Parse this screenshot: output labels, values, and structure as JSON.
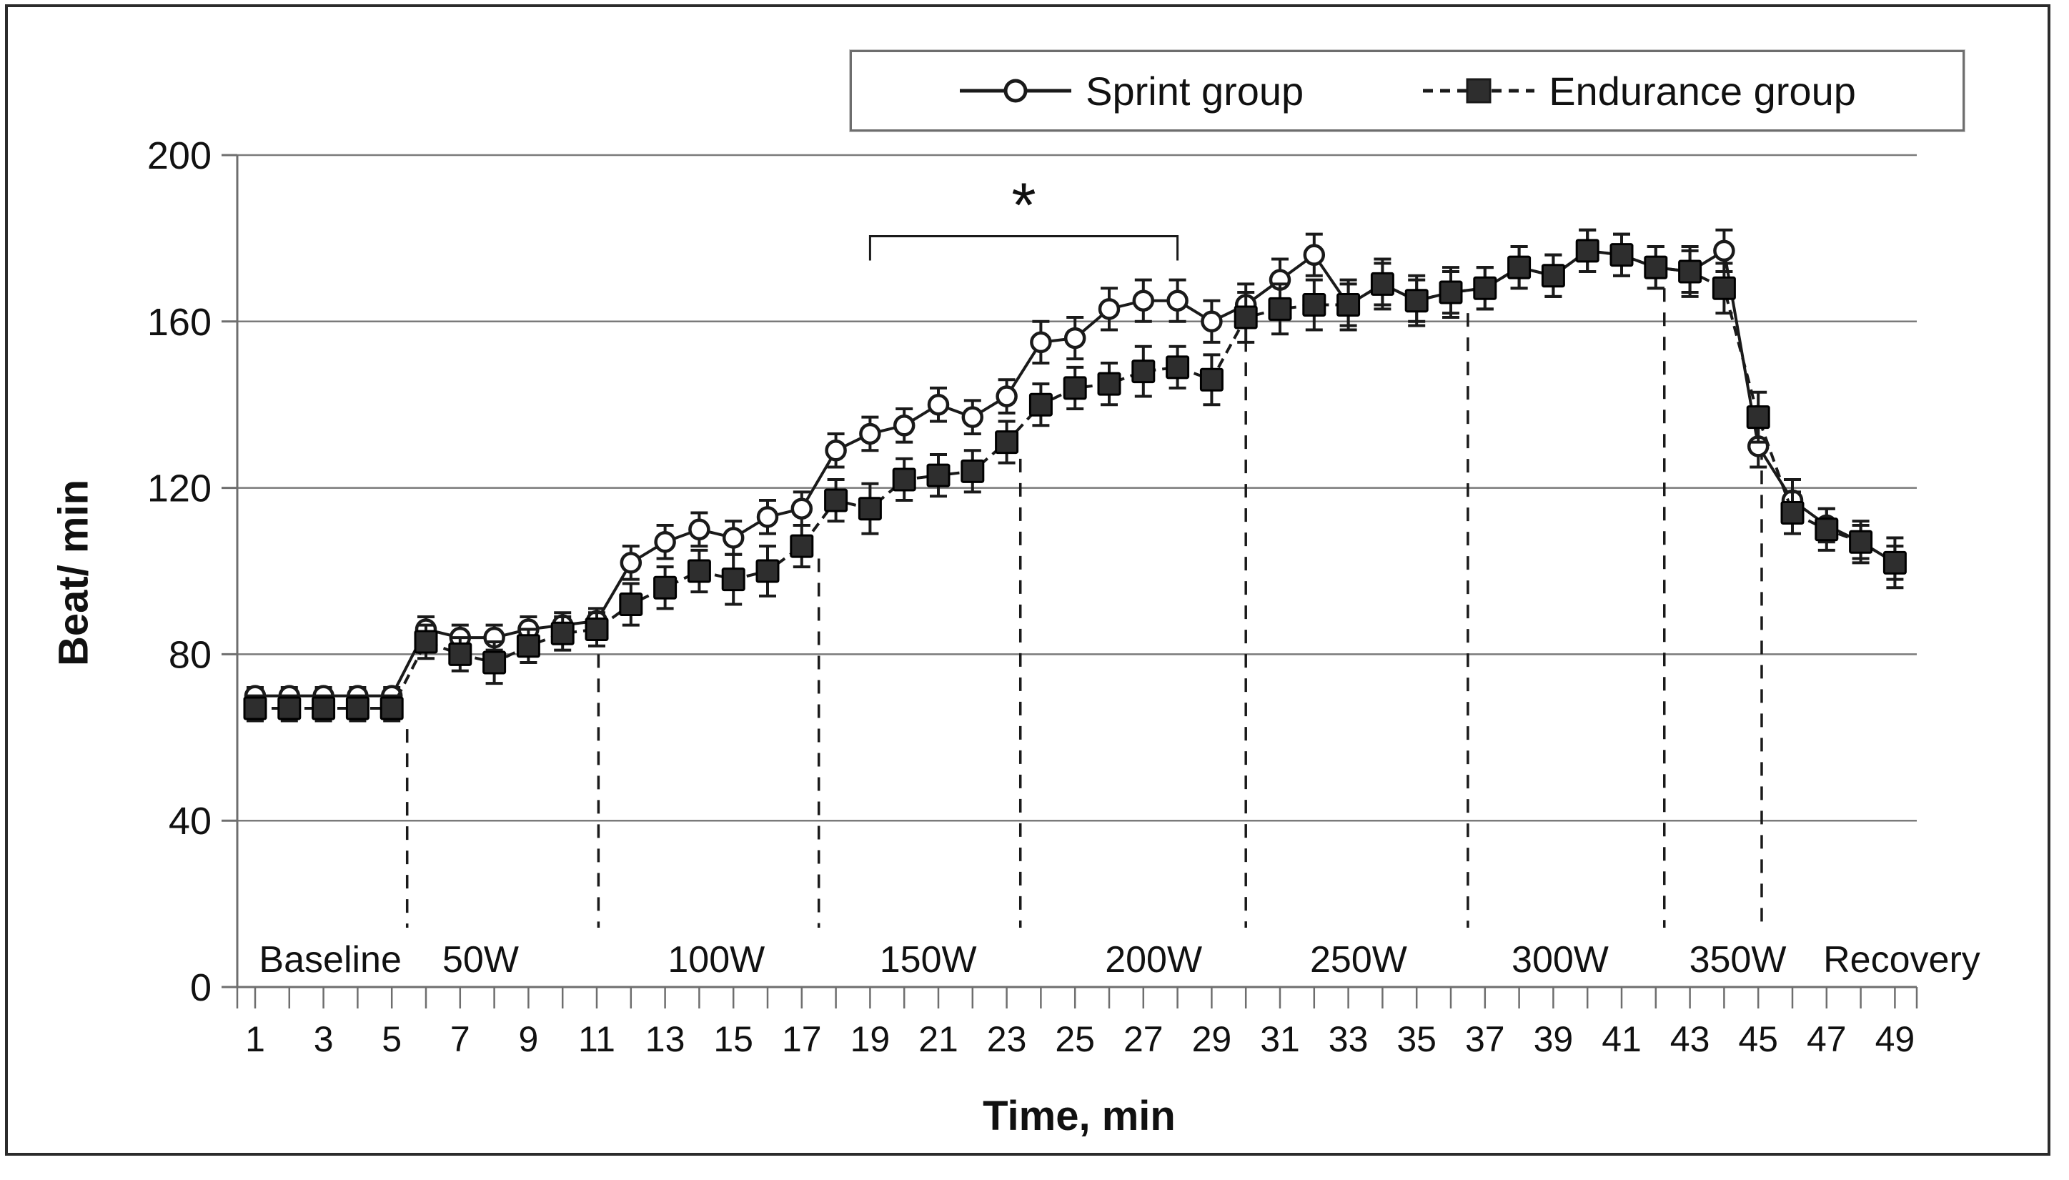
{
  "chart_data": {
    "type": "line",
    "title": "",
    "xlabel": "Time, min",
    "ylabel": "Beat/ min",
    "xlim": [
      0,
      50
    ],
    "ylim": [
      0,
      200
    ],
    "y_ticks": [
      0,
      40,
      80,
      120,
      160,
      200
    ],
    "x_tick_labels": [
      1,
      3,
      5,
      7,
      9,
      11,
      13,
      15,
      17,
      19,
      21,
      23,
      25,
      27,
      29,
      31,
      33,
      35,
      37,
      39,
      41,
      43,
      45,
      47,
      49
    ],
    "grid": "horizontal",
    "legend_position": "top",
    "x": [
      1,
      2,
      3,
      4,
      5,
      6,
      7,
      8,
      9,
      10,
      11,
      12,
      13,
      14,
      15,
      16,
      17,
      18,
      19,
      20,
      21,
      22,
      23,
      24,
      25,
      26,
      27,
      28,
      29,
      30,
      31,
      32,
      33,
      34,
      35,
      36,
      37,
      38,
      39,
      40,
      41,
      42,
      43,
      44,
      45,
      46,
      47,
      48,
      49
    ],
    "series": [
      {
        "name": "Sprint group",
        "marker": "open-circle",
        "line_style": "solid",
        "values": [
          70,
          70,
          70,
          70,
          70,
          86,
          84,
          84,
          86,
          87,
          88,
          102,
          107,
          110,
          108,
          113,
          115,
          129,
          133,
          135,
          140,
          137,
          142,
          155,
          156,
          163,
          165,
          165,
          160,
          164,
          170,
          176,
          164,
          169,
          165,
          167,
          168,
          173,
          171,
          177,
          176,
          173,
          172,
          177,
          130,
          117,
          111,
          107,
          102
        ],
        "errors": [
          2,
          2,
          2,
          2,
          2,
          3,
          3,
          3,
          3,
          3,
          3,
          4,
          4,
          4,
          4,
          4,
          4,
          4,
          4,
          4,
          4,
          4,
          4,
          5,
          5,
          5,
          5,
          5,
          5,
          5,
          5,
          5,
          5,
          5,
          5,
          5,
          5,
          5,
          5,
          5,
          5,
          5,
          5,
          5,
          5,
          5,
          4,
          4,
          4
        ]
      },
      {
        "name": "Endurance group",
        "marker": "filled-square",
        "line_style": "dashed",
        "values": [
          67,
          67,
          67,
          67,
          67,
          83,
          80,
          78,
          82,
          85,
          86,
          92,
          96,
          100,
          98,
          100,
          106,
          117,
          115,
          122,
          123,
          124,
          131,
          140,
          144,
          145,
          148,
          149,
          146,
          161,
          163,
          164,
          164,
          169,
          165,
          167,
          168,
          173,
          171,
          177,
          176,
          173,
          172,
          168,
          137,
          114,
          110,
          107,
          102
        ],
        "errors": [
          3,
          3,
          3,
          3,
          3,
          4,
          4,
          5,
          4,
          4,
          4,
          5,
          5,
          5,
          6,
          6,
          5,
          5,
          6,
          5,
          5,
          5,
          5,
          5,
          5,
          5,
          6,
          5,
          6,
          6,
          6,
          6,
          6,
          6,
          6,
          6,
          5,
          5,
          5,
          5,
          5,
          5,
          6,
          6,
          6,
          5,
          5,
          5,
          6
        ]
      }
    ],
    "stage_labels": [
      {
        "text": "Baseline",
        "minute": 3.2
      },
      {
        "text": "50W",
        "minute": 7.6
      },
      {
        "text": "100W",
        "minute": 14.5
      },
      {
        "text": "150W",
        "minute": 20.7
      },
      {
        "text": "200W",
        "minute": 27.3
      },
      {
        "text": "250W",
        "minute": 33.3
      },
      {
        "text": "300W",
        "minute": 39.2
      },
      {
        "text": "350W",
        "minute": 44.4
      },
      {
        "text": "Recovery",
        "minute": 49.2
      }
    ],
    "stage_boundaries": [
      {
        "minute": 5.45,
        "top_value": 62
      },
      {
        "minute": 11.05,
        "top_value": 80
      },
      {
        "minute": 17.5,
        "top_value": 103
      },
      {
        "minute": 23.4,
        "top_value": 127
      },
      {
        "minute": 30.0,
        "top_value": 156
      },
      {
        "minute": 36.5,
        "top_value": 162
      },
      {
        "minute": 42.25,
        "top_value": 168
      },
      {
        "minute": 45.1,
        "top_value": 130
      }
    ],
    "significance": {
      "symbol": "*",
      "from_minute": 19,
      "to_minute": 28,
      "bar_value": 180.5,
      "label_value": 190
    }
  },
  "legend": {
    "items": [
      {
        "label": "Sprint group"
      },
      {
        "label": "Endurance group"
      }
    ]
  },
  "axes": {
    "y_title": "Beat/ min",
    "x_title": "Time, min"
  },
  "colors": {
    "series_stroke": "#1a1a1a",
    "square_fill": "#2e2e2e",
    "circle_fill": "#ffffff",
    "gridline": "#7a7a7a",
    "axis": "#6e6e6e",
    "frame": "#2b2b2b",
    "text": "#111111"
  }
}
